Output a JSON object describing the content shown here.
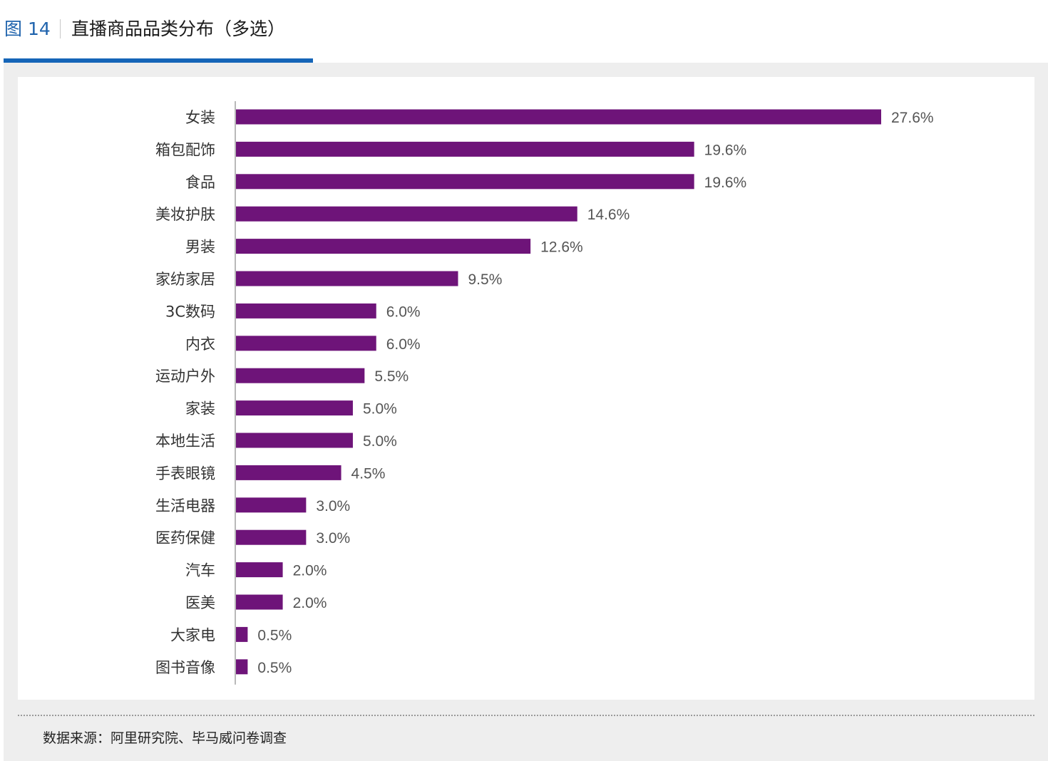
{
  "figure": {
    "number": "图 14",
    "title": "直播商品品类分布（多选）"
  },
  "source": "数据来源：阿里研究院、毕马威问卷调查",
  "chart_data": {
    "type": "bar",
    "orientation": "horizontal",
    "bar_color": "#6e1479",
    "categories": [
      "女装",
      "箱包配饰",
      "食品",
      "美妆护肤",
      "男装",
      "家纺家居",
      "3C数码",
      "内衣",
      "运动户外",
      "家装",
      "本地生活",
      "手表眼镜",
      "生活电器",
      "医药保健",
      "汽车",
      "医美",
      "大家电",
      "图书音像"
    ],
    "values": [
      27.6,
      19.6,
      19.6,
      14.6,
      12.6,
      9.5,
      6.0,
      6.0,
      5.5,
      5.0,
      5.0,
      4.5,
      3.0,
      3.0,
      2.0,
      2.0,
      0.5,
      0.5
    ],
    "value_labels": [
      "27.6%",
      "19.6%",
      "19.6%",
      "14.6%",
      "12.6%",
      "9.5%",
      "6.0%",
      "6.0%",
      "5.5%",
      "5.0%",
      "5.0%",
      "4.5%",
      "3.0%",
      "3.0%",
      "2.0%",
      "2.0%",
      "0.5%",
      "0.5%"
    ],
    "xlim": [
      0,
      30
    ],
    "grid": false,
    "legend": "none"
  }
}
